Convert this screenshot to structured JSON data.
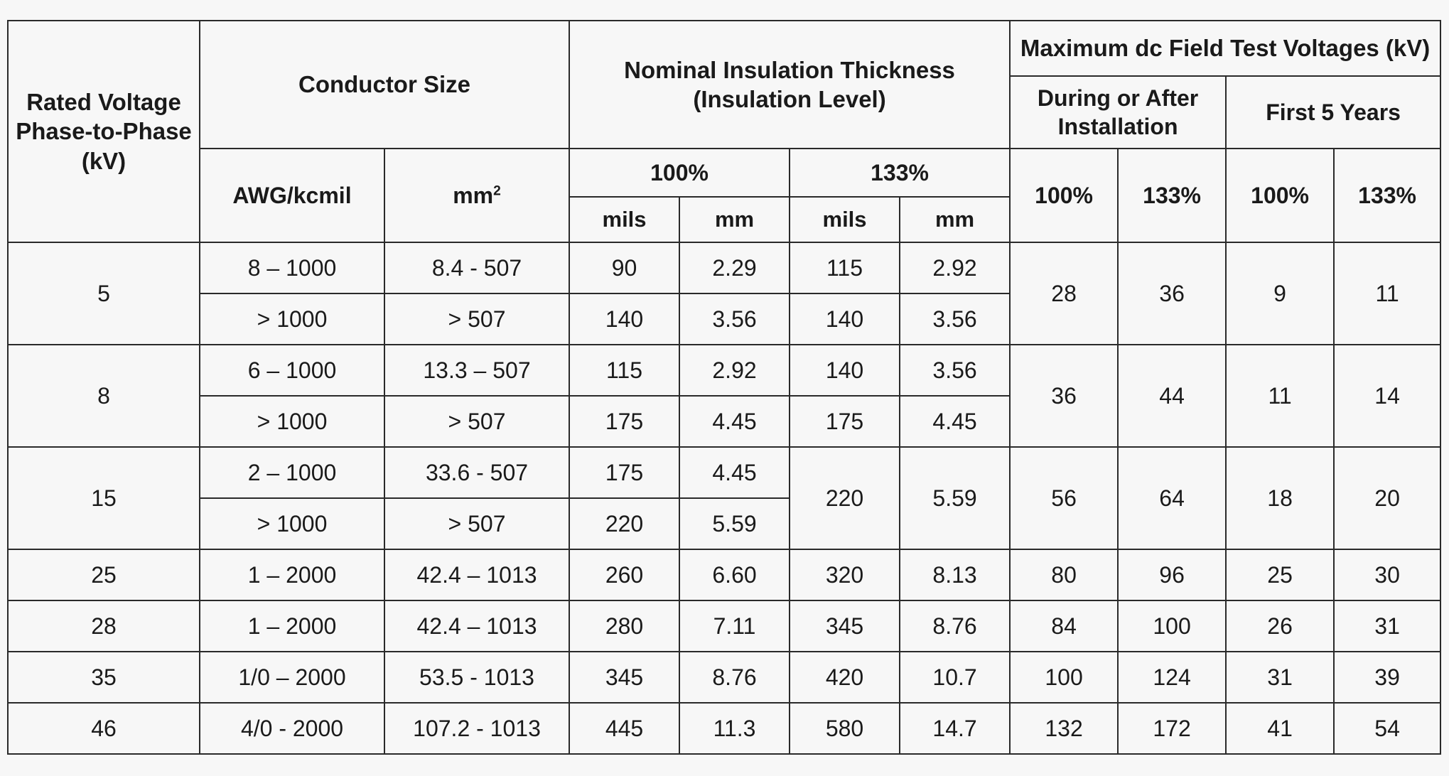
{
  "table": {
    "border_color": "#2a2a2a",
    "background_color": "#f7f7f7",
    "font_family": "Helvetica Neue, Helvetica, Arial, sans-serif",
    "header_font_weight": 700,
    "body_font_weight": 400,
    "header_fontsize_pt": 25,
    "body_fontsize_pt": 24,
    "headers": {
      "rated_voltage": "Rated Voltage Phase-to-Phase (kV)",
      "conductor_size": "Conductor Size",
      "awg": "AWG/kcmil",
      "mm2": "mm",
      "mm2_sup": "2",
      "nominal_insulation": "Nominal Insulation Thickness (Insulation Level)",
      "max_dc": "Maximum dc Field Test Voltages (kV)",
      "during_install": "During or After Installation",
      "first_5_years": "First 5 Years",
      "p100": "100%",
      "p133": "133%",
      "mils": "mils",
      "mm": "mm"
    },
    "rows": [
      {
        "voltage": "5",
        "voltage_rowspan": 2,
        "awg": "8 – 1000",
        "mm2": "8.4 - 507",
        "t100_mils": "90",
        "t100_mm": "2.29",
        "t133_mils": "115",
        "t133_mm": "2.92",
        "di100": "28",
        "di133": "36",
        "y5_100": "9",
        "y5_133": "11",
        "dc_rowspan": 2
      },
      {
        "awg": "> 1000",
        "mm2": "> 507",
        "t100_mils": "140",
        "t100_mm": "3.56",
        "t133_mils": "140",
        "t133_mm": "3.56"
      },
      {
        "voltage": "8",
        "voltage_rowspan": 2,
        "awg": "6 – 1000",
        "mm2": "13.3 – 507",
        "t100_mils": "115",
        "t100_mm": "2.92",
        "t133_mils": "140",
        "t133_mm": "3.56",
        "di100": "36",
        "di133": "44",
        "y5_100": "11",
        "y5_133": "14",
        "dc_rowspan": 2
      },
      {
        "awg": "> 1000",
        "mm2": "> 507",
        "t100_mils": "175",
        "t100_mm": "4.45",
        "t133_mils": "175",
        "t133_mm": "4.45"
      },
      {
        "voltage": "15",
        "voltage_rowspan": 2,
        "awg": "2 – 1000",
        "mm2": "33.6 - 507",
        "t100_mils": "175",
        "t100_mm": "4.45",
        "t133_mils": "220",
        "t133_mm": "5.59",
        "t133_rowspan": 2,
        "di100": "56",
        "di133": "64",
        "y5_100": "18",
        "y5_133": "20",
        "dc_rowspan": 2
      },
      {
        "awg": "> 1000",
        "mm2": "> 507",
        "t100_mils": "220",
        "t100_mm": "5.59"
      },
      {
        "voltage": "25",
        "awg": "1 – 2000",
        "mm2": "42.4 – 1013",
        "t100_mils": "260",
        "t100_mm": "6.60",
        "t133_mils": "320",
        "t133_mm": "8.13",
        "di100": "80",
        "di133": "96",
        "y5_100": "25",
        "y5_133": "30"
      },
      {
        "voltage": "28",
        "awg": "1 – 2000",
        "mm2": "42.4 – 1013",
        "t100_mils": "280",
        "t100_mm": "7.11",
        "t133_mils": "345",
        "t133_mm": "8.76",
        "di100": "84",
        "di133": "100",
        "y5_100": "26",
        "y5_133": "31"
      },
      {
        "voltage": "35",
        "awg": "1/0 – 2000",
        "mm2": "53.5 - 1013",
        "t100_mils": "345",
        "t100_mm": "8.76",
        "t133_mils": "420",
        "t133_mm": "10.7",
        "di100": "100",
        "di133": "124",
        "y5_100": "31",
        "y5_133": "39"
      },
      {
        "voltage": "46",
        "awg": "4/0 - 2000",
        "mm2": "107.2 - 1013",
        "t100_mils": "445",
        "t100_mm": "11.3",
        "t133_mils": "580",
        "t133_mm": "14.7",
        "di100": "132",
        "di133": "172",
        "y5_100": "41",
        "y5_133": "54"
      }
    ]
  }
}
